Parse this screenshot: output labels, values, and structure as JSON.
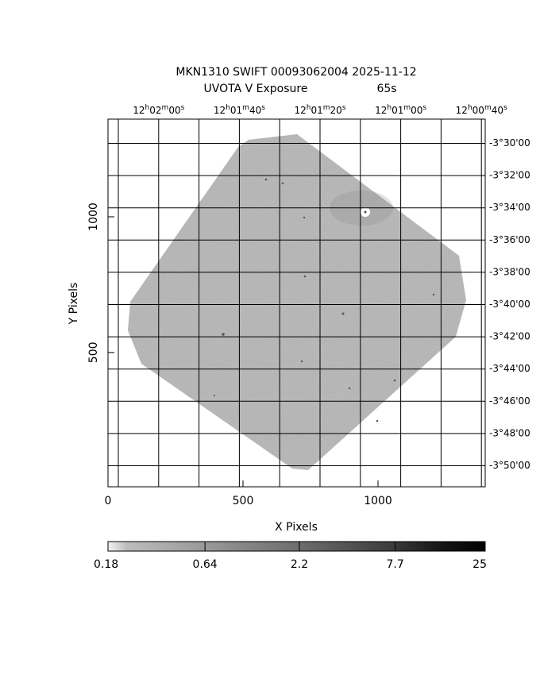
{
  "chart_data": {
    "type": "image",
    "title": "MKN1310 SWIFT 00093062004 2025-11-12",
    "subtitle": "UVOTA V Exposure",
    "exposure": "65s",
    "x_label": "X Pixels",
    "y_label": "Y Pixels",
    "xlim": [
      0,
      1397
    ],
    "ylim": [
      5,
      1360
    ],
    "xticks": [
      0,
      500,
      1000
    ],
    "yticks": [
      500,
      1000
    ],
    "ra_ticks": [
      [
        "12",
        "h",
        "02",
        "m",
        "00",
        "s"
      ],
      [
        "12",
        "h",
        "01",
        "m",
        "40",
        "s"
      ],
      [
        "12",
        "h",
        "01",
        "m",
        "20",
        "s"
      ],
      [
        "12",
        "h",
        "01",
        "m",
        "00",
        "s"
      ],
      [
        "12",
        "h",
        "00",
        "m",
        "40",
        "s"
      ]
    ],
    "dec_ticks": [
      "-3°30'00",
      "-3°32'00",
      "-3°34'00",
      "-3°36'00",
      "-3°38'00",
      "-3°40'00",
      "-3°42'00",
      "-3°44'00",
      "-3°46'00",
      "-3°48'00",
      "-3°50'00"
    ],
    "colorbar": {
      "lim": [
        0.18,
        25
      ],
      "ticks": [
        0.18,
        0.64,
        2.2,
        7.7,
        25
      ],
      "log": true
    }
  }
}
